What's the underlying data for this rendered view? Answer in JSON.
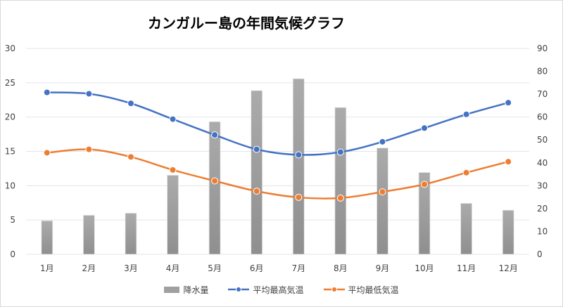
{
  "chart_data": {
    "type": "bar+line",
    "title": "カンガルー島の年間気候グラフ",
    "categories": [
      "1月",
      "2月",
      "3月",
      "4月",
      "5月",
      "6月",
      "7月",
      "8月",
      "9月",
      "10月",
      "11月",
      "12月"
    ],
    "y_left": {
      "range": [
        0,
        30
      ],
      "ticks": [
        0,
        5,
        10,
        15,
        20,
        25,
        30
      ]
    },
    "y_right": {
      "range": [
        0,
        90
      ],
      "ticks": [
        0,
        10,
        20,
        30,
        40,
        50,
        60,
        70,
        80,
        90
      ]
    },
    "grid": true,
    "legend_position": "bottom",
    "series": [
      {
        "name": "降水量",
        "type": "bar",
        "axis": "right",
        "color": "#a0a0a0",
        "values": [
          14.7,
          17.1,
          18.0,
          34.6,
          58.0,
          71.6,
          76.8,
          64.2,
          46.5,
          35.8,
          22.3,
          19.3
        ]
      },
      {
        "name": "平均最高気温",
        "type": "line",
        "axis": "left",
        "color": "#4472c4",
        "values": [
          23.6,
          23.4,
          22.0,
          19.7,
          17.4,
          15.3,
          14.5,
          14.9,
          16.4,
          18.4,
          20.4,
          22.1
        ]
      },
      {
        "name": "平均最低気温",
        "type": "line",
        "axis": "left",
        "color": "#ed7d31",
        "values": [
          14.8,
          15.3,
          14.2,
          12.3,
          10.7,
          9.2,
          8.3,
          8.2,
          9.1,
          10.2,
          11.9,
          13.5
        ]
      }
    ]
  }
}
